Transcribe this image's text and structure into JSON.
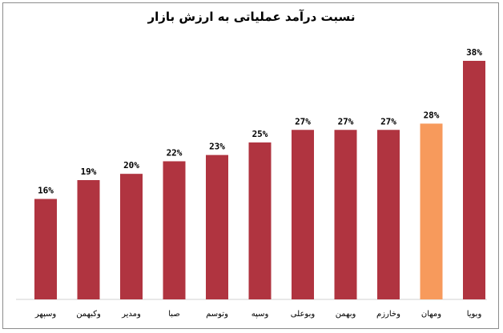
{
  "chart_data": {
    "type": "bar",
    "title": "نسبت درآمد عملیاتی به ارزش بازار",
    "categories": [
      "وسپهر",
      "وکبهمن",
      "ومدیر",
      "صبا",
      "وتوسم",
      "وسپه",
      "وبوعلی",
      "وبهمن",
      "وخارزم",
      "ومهان",
      "وبویا"
    ],
    "values": [
      16,
      19,
      20,
      22,
      23,
      25,
      27,
      27,
      27,
      28,
      38
    ],
    "value_labels": [
      "16%",
      "19%",
      "20%",
      "22%",
      "23%",
      "25%",
      "27%",
      "27%",
      "27%",
      "28%",
      "38%"
    ],
    "highlight_category": "ومهان",
    "colors": {
      "bar": "#b03440",
      "highlight": "#f79a5c"
    },
    "ylim": [
      0,
      40
    ],
    "grid": false,
    "legend": "none"
  }
}
